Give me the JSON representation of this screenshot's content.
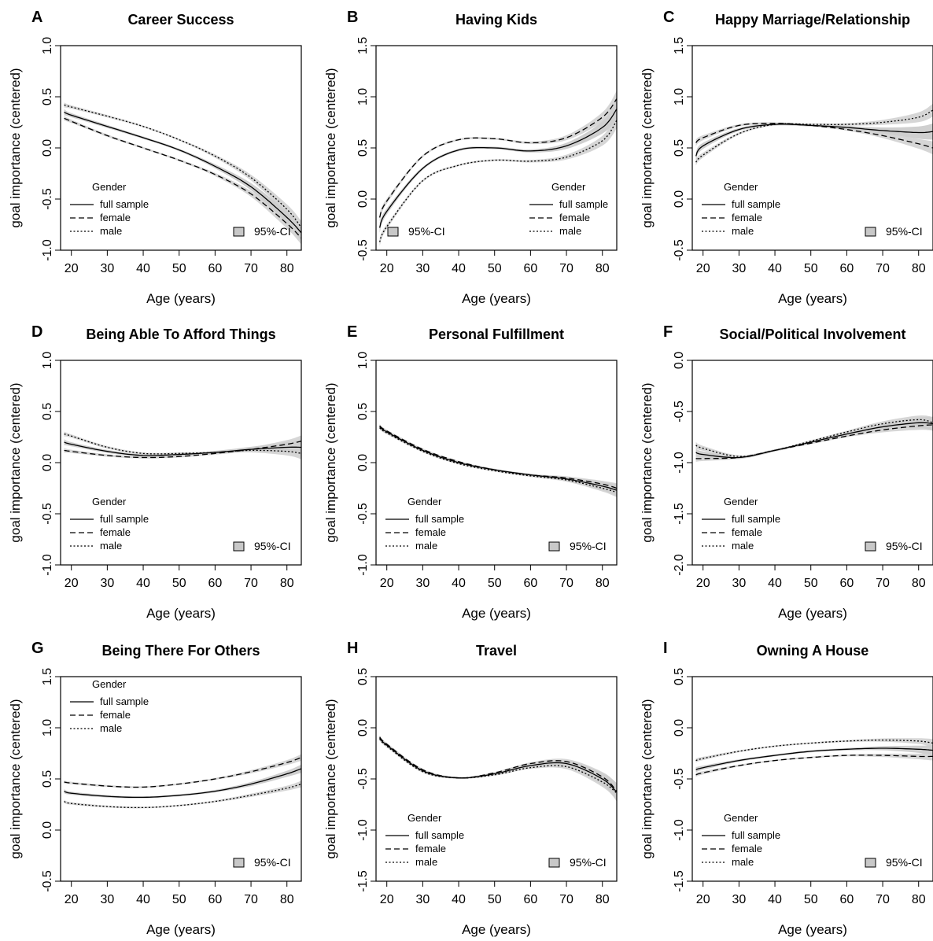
{
  "figure": {
    "panels": [
      {
        "letter": "A",
        "title": "Career Success",
        "xlabel": "Age (years)",
        "ylabel": "goal importance (centered)",
        "legend_title": "Gender",
        "legend_items": [
          "full sample",
          "female",
          "male"
        ],
        "ci_label": "95%-CI",
        "ci_position": "bottom-right"
      },
      {
        "letter": "B",
        "title": "Having Kids",
        "xlabel": "Age (years)",
        "ylabel": "goal importance (centered)",
        "legend_title": "Gender",
        "legend_items": [
          "full sample",
          "female",
          "male"
        ],
        "ci_label": "95%-CI",
        "ci_position": "bottom-left"
      },
      {
        "letter": "C",
        "title": "Happy Marriage/Relationship",
        "xlabel": "Age (years)",
        "ylabel": "goal importance (centered)",
        "legend_title": "Gender",
        "legend_items": [
          "full sample",
          "female",
          "male"
        ],
        "ci_label": "95%-CI",
        "ci_position": "bottom-right"
      },
      {
        "letter": "D",
        "title": "Being Able To Afford Things",
        "xlabel": "Age (years)",
        "ylabel": "goal importance (centered)",
        "legend_title": "Gender",
        "legend_items": [
          "full sample",
          "female",
          "male"
        ],
        "ci_label": "95%-CI",
        "ci_position": "bottom-right"
      },
      {
        "letter": "E",
        "title": "Personal Fulfillment",
        "xlabel": "Age (years)",
        "ylabel": "goal importance (centered)",
        "legend_title": "Gender",
        "legend_items": [
          "full sample",
          "female",
          "male"
        ],
        "ci_label": "95%-CI",
        "ci_position": "bottom-right"
      },
      {
        "letter": "F",
        "title": "Social/Political Involvement",
        "xlabel": "Age (years)",
        "ylabel": "goal importance (centered)",
        "legend_title": "Gender",
        "legend_items": [
          "full sample",
          "female",
          "male"
        ],
        "ci_label": "95%-CI",
        "ci_position": "bottom-right"
      },
      {
        "letter": "G",
        "title": "Being There For Others",
        "xlabel": "Age (years)",
        "ylabel": "goal importance (centered)",
        "legend_title": "Gender",
        "legend_items": [
          "full sample",
          "female",
          "male"
        ],
        "ci_label": "95%-CI",
        "ci_position": "bottom-right"
      },
      {
        "letter": "H",
        "title": "Travel",
        "xlabel": "Age (years)",
        "ylabel": "goal importance (centered)",
        "legend_title": "Gender",
        "legend_items": [
          "full sample",
          "female",
          "male"
        ],
        "ci_label": "95%-CI",
        "ci_position": "bottom-right"
      },
      {
        "letter": "I",
        "title": "Owning A House",
        "xlabel": "Age (years)",
        "ylabel": "goal importance (centered)",
        "legend_title": "Gender",
        "legend_items": [
          "full sample",
          "female",
          "male"
        ],
        "ci_label": "95%-CI",
        "ci_position": "bottom-right"
      }
    ],
    "colors": {
      "line": "#000000",
      "ci_band": "#cfcfcf",
      "ci_swatch": "#c8c8c8"
    }
  },
  "chart_data": [
    {
      "type": "line",
      "title": "Career Success",
      "xlabel": "Age (years)",
      "ylabel": "goal importance (centered)",
      "xlim": [
        17,
        84
      ],
      "ylim": [
        -1.0,
        1.0
      ],
      "yticks": [
        "-1.0",
        "-0.5",
        "0.0",
        "0.5",
        "1.0"
      ],
      "xticks": [
        20,
        30,
        40,
        50,
        60,
        70,
        80
      ],
      "x": [
        18,
        20,
        30,
        40,
        50,
        60,
        70,
        80,
        84
      ],
      "series": [
        {
          "name": "full sample",
          "values": [
            0.35,
            0.32,
            0.21,
            0.1,
            -0.02,
            -0.18,
            -0.38,
            -0.68,
            -0.83
          ]
        },
        {
          "name": "female",
          "values": [
            0.29,
            0.26,
            0.12,
            0.0,
            -0.12,
            -0.26,
            -0.45,
            -0.74,
            -0.88
          ]
        },
        {
          "name": "male",
          "values": [
            0.42,
            0.4,
            0.31,
            0.21,
            0.08,
            -0.08,
            -0.29,
            -0.6,
            -0.78
          ]
        }
      ],
      "ci_halfwidth": [
        0.03,
        0.02,
        0.015,
        0.012,
        0.012,
        0.02,
        0.035,
        0.06,
        0.08
      ],
      "legend": "bottom-left"
    },
    {
      "type": "line",
      "title": "Having Kids",
      "xlabel": "Age (years)",
      "ylabel": "goal importance (centered)",
      "xlim": [
        17,
        84
      ],
      "ylim": [
        -0.5,
        1.5
      ],
      "yticks": [
        "-0.5",
        "0.0",
        "0.5",
        "1.0",
        "1.5"
      ],
      "xticks": [
        20,
        30,
        40,
        50,
        60,
        70,
        80
      ],
      "x": [
        18,
        20,
        30,
        40,
        50,
        60,
        70,
        80,
        84
      ],
      "series": [
        {
          "name": "full sample",
          "values": [
            -0.28,
            -0.12,
            0.3,
            0.48,
            0.5,
            0.47,
            0.52,
            0.7,
            0.88
          ]
        },
        {
          "name": "female",
          "values": [
            -0.18,
            -0.02,
            0.42,
            0.58,
            0.59,
            0.55,
            0.6,
            0.8,
            0.98
          ]
        },
        {
          "name": "male",
          "values": [
            -0.42,
            -0.27,
            0.18,
            0.33,
            0.38,
            0.37,
            0.41,
            0.57,
            0.77
          ]
        }
      ],
      "ci_halfwidth": [
        0.05,
        0.03,
        0.015,
        0.012,
        0.012,
        0.015,
        0.03,
        0.06,
        0.1
      ],
      "legend": "bottom-right"
    },
    {
      "type": "line",
      "title": "Happy Marriage/Relationship",
      "xlabel": "Age (years)",
      "ylabel": "goal importance (centered)",
      "xlim": [
        17,
        84
      ],
      "ylim": [
        -0.5,
        1.5
      ],
      "yticks": [
        "-0.5",
        "0.0",
        "0.5",
        "1.0",
        "1.5"
      ],
      "xticks": [
        20,
        30,
        40,
        50,
        60,
        70,
        80
      ],
      "x": [
        18,
        20,
        30,
        40,
        50,
        60,
        70,
        80,
        84
      ],
      "series": [
        {
          "name": "full sample",
          "values": [
            0.42,
            0.52,
            0.68,
            0.73,
            0.72,
            0.7,
            0.67,
            0.65,
            0.66
          ]
        },
        {
          "name": "female",
          "values": [
            0.55,
            0.6,
            0.72,
            0.74,
            0.72,
            0.68,
            0.62,
            0.54,
            0.5
          ]
        },
        {
          "name": "male",
          "values": [
            0.36,
            0.43,
            0.64,
            0.73,
            0.73,
            0.73,
            0.75,
            0.8,
            0.87
          ]
        }
      ],
      "ci_halfwidth": [
        0.04,
        0.03,
        0.015,
        0.012,
        0.012,
        0.015,
        0.03,
        0.06,
        0.08
      ],
      "legend": "bottom-left"
    },
    {
      "type": "line",
      "title": "Being Able To Afford Things",
      "xlabel": "Age (years)",
      "ylabel": "goal importance (centered)",
      "xlim": [
        17,
        84
      ],
      "ylim": [
        -1.0,
        1.0
      ],
      "yticks": [
        "-1.0",
        "-0.5",
        "0.0",
        "0.5",
        "1.0"
      ],
      "xticks": [
        20,
        30,
        40,
        50,
        60,
        70,
        80
      ],
      "x": [
        18,
        20,
        30,
        40,
        50,
        60,
        70,
        80,
        84
      ],
      "series": [
        {
          "name": "full sample",
          "values": [
            0.2,
            0.18,
            0.11,
            0.07,
            0.08,
            0.1,
            0.13,
            0.15,
            0.15
          ]
        },
        {
          "name": "female",
          "values": [
            0.12,
            0.11,
            0.07,
            0.05,
            0.06,
            0.09,
            0.13,
            0.18,
            0.21
          ]
        },
        {
          "name": "male",
          "values": [
            0.28,
            0.26,
            0.15,
            0.09,
            0.09,
            0.1,
            0.12,
            0.11,
            0.09
          ]
        }
      ],
      "ci_halfwidth": [
        0.03,
        0.02,
        0.015,
        0.012,
        0.012,
        0.015,
        0.025,
        0.05,
        0.07
      ],
      "legend": "bottom-left"
    },
    {
      "type": "line",
      "title": "Personal Fulfillment",
      "xlabel": "Age (years)",
      "ylabel": "goal importance (centered)",
      "xlim": [
        17,
        84
      ],
      "ylim": [
        -1.0,
        1.0
      ],
      "yticks": [
        "-1.0",
        "-0.5",
        "0.0",
        "0.5",
        "1.0"
      ],
      "xticks": [
        20,
        30,
        40,
        50,
        60,
        70,
        80
      ],
      "x": [
        18,
        20,
        30,
        40,
        50,
        60,
        70,
        80,
        84
      ],
      "series": [
        {
          "name": "full sample",
          "values": [
            0.35,
            0.3,
            0.12,
            0.0,
            -0.07,
            -0.12,
            -0.16,
            -0.23,
            -0.27
          ]
        },
        {
          "name": "female",
          "values": [
            0.36,
            0.31,
            0.13,
            0.01,
            -0.07,
            -0.12,
            -0.15,
            -0.21,
            -0.25
          ]
        },
        {
          "name": "male",
          "values": [
            0.34,
            0.29,
            0.11,
            -0.01,
            -0.08,
            -0.13,
            -0.17,
            -0.25,
            -0.29
          ]
        }
      ],
      "ci_halfwidth": [
        0.02,
        0.015,
        0.012,
        0.01,
        0.01,
        0.012,
        0.02,
        0.04,
        0.06
      ],
      "legend": "bottom-left"
    },
    {
      "type": "line",
      "title": "Social/Political Involvement",
      "xlabel": "Age (years)",
      "ylabel": "goal importance (centered)",
      "xlim": [
        17,
        84
      ],
      "ylim": [
        -2.0,
        0.0
      ],
      "yticks": [
        "-2.0",
        "-1.5",
        "-1.0",
        "-0.5",
        "0.0"
      ],
      "xticks": [
        20,
        30,
        40,
        50,
        60,
        70,
        80
      ],
      "x": [
        18,
        20,
        30,
        40,
        50,
        60,
        70,
        80,
        84
      ],
      "series": [
        {
          "name": "full sample",
          "values": [
            -0.9,
            -0.92,
            -0.95,
            -0.88,
            -0.8,
            -0.72,
            -0.65,
            -0.61,
            -0.62
          ]
        },
        {
          "name": "female",
          "values": [
            -0.96,
            -0.96,
            -0.95,
            -0.88,
            -0.81,
            -0.74,
            -0.68,
            -0.64,
            -0.63
          ]
        },
        {
          "name": "male",
          "values": [
            -0.83,
            -0.86,
            -0.94,
            -0.88,
            -0.79,
            -0.7,
            -0.62,
            -0.58,
            -0.61
          ]
        }
      ],
      "ci_halfwidth": [
        0.04,
        0.03,
        0.015,
        0.012,
        0.012,
        0.015,
        0.03,
        0.05,
        0.07
      ],
      "legend": "bottom-left"
    },
    {
      "type": "line",
      "title": "Being There For Others",
      "xlabel": "Age (years)",
      "ylabel": "goal importance (centered)",
      "xlim": [
        17,
        84
      ],
      "ylim": [
        -0.5,
        1.5
      ],
      "yticks": [
        "-0.5",
        "0.0",
        "0.5",
        "1.0",
        "1.5"
      ],
      "xticks": [
        20,
        30,
        40,
        50,
        60,
        70,
        80
      ],
      "x": [
        18,
        20,
        30,
        40,
        50,
        60,
        70,
        80,
        84
      ],
      "series": [
        {
          "name": "full sample",
          "values": [
            0.38,
            0.36,
            0.33,
            0.32,
            0.34,
            0.38,
            0.45,
            0.55,
            0.6
          ]
        },
        {
          "name": "female",
          "values": [
            0.47,
            0.46,
            0.43,
            0.42,
            0.45,
            0.5,
            0.57,
            0.66,
            0.71
          ]
        },
        {
          "name": "male",
          "values": [
            0.28,
            0.26,
            0.23,
            0.22,
            0.24,
            0.28,
            0.34,
            0.41,
            0.45
          ]
        }
      ],
      "ci_halfwidth": [
        0.02,
        0.015,
        0.012,
        0.01,
        0.01,
        0.012,
        0.02,
        0.03,
        0.04
      ],
      "legend": "top-left"
    },
    {
      "type": "line",
      "title": "Travel",
      "xlabel": "Age (years)",
      "ylabel": "goal importance (centered)",
      "xlim": [
        17,
        84
      ],
      "ylim": [
        -1.5,
        0.5
      ],
      "yticks": [
        "-1.5",
        "-1.0",
        "-0.5",
        "0.0",
        "0.5"
      ],
      "xticks": [
        20,
        30,
        40,
        50,
        60,
        70,
        80
      ],
      "x": [
        18,
        20,
        30,
        40,
        50,
        60,
        70,
        80,
        84
      ],
      "series": [
        {
          "name": "full sample",
          "values": [
            -0.1,
            -0.17,
            -0.42,
            -0.49,
            -0.45,
            -0.37,
            -0.35,
            -0.5,
            -0.63
          ]
        },
        {
          "name": "female",
          "values": [
            -0.09,
            -0.16,
            -0.41,
            -0.49,
            -0.44,
            -0.35,
            -0.33,
            -0.48,
            -0.62
          ]
        },
        {
          "name": "male",
          "values": [
            -0.11,
            -0.18,
            -0.43,
            -0.49,
            -0.46,
            -0.39,
            -0.38,
            -0.53,
            -0.64
          ]
        }
      ],
      "ci_halfwidth": [
        0.02,
        0.015,
        0.012,
        0.01,
        0.01,
        0.015,
        0.03,
        0.06,
        0.09
      ],
      "legend": "bottom-left"
    },
    {
      "type": "line",
      "title": "Owning A House",
      "xlabel": "Age (years)",
      "ylabel": "goal importance (centered)",
      "xlim": [
        17,
        84
      ],
      "ylim": [
        -1.5,
        0.5
      ],
      "yticks": [
        "-1.5",
        "-1.0",
        "-0.5",
        "0.0",
        "0.5"
      ],
      "xticks": [
        20,
        30,
        40,
        50,
        60,
        70,
        80
      ],
      "x": [
        18,
        20,
        30,
        40,
        50,
        60,
        70,
        80,
        84
      ],
      "series": [
        {
          "name": "full sample",
          "values": [
            -0.41,
            -0.39,
            -0.32,
            -0.27,
            -0.23,
            -0.21,
            -0.2,
            -0.21,
            -0.22
          ]
        },
        {
          "name": "female",
          "values": [
            -0.46,
            -0.44,
            -0.37,
            -0.32,
            -0.29,
            -0.27,
            -0.27,
            -0.28,
            -0.28
          ]
        },
        {
          "name": "male",
          "values": [
            -0.32,
            -0.3,
            -0.23,
            -0.18,
            -0.15,
            -0.13,
            -0.12,
            -0.13,
            -0.15
          ]
        }
      ],
      "ci_halfwidth": [
        0.025,
        0.02,
        0.012,
        0.01,
        0.01,
        0.012,
        0.02,
        0.035,
        0.05
      ],
      "legend": "bottom-left"
    }
  ]
}
